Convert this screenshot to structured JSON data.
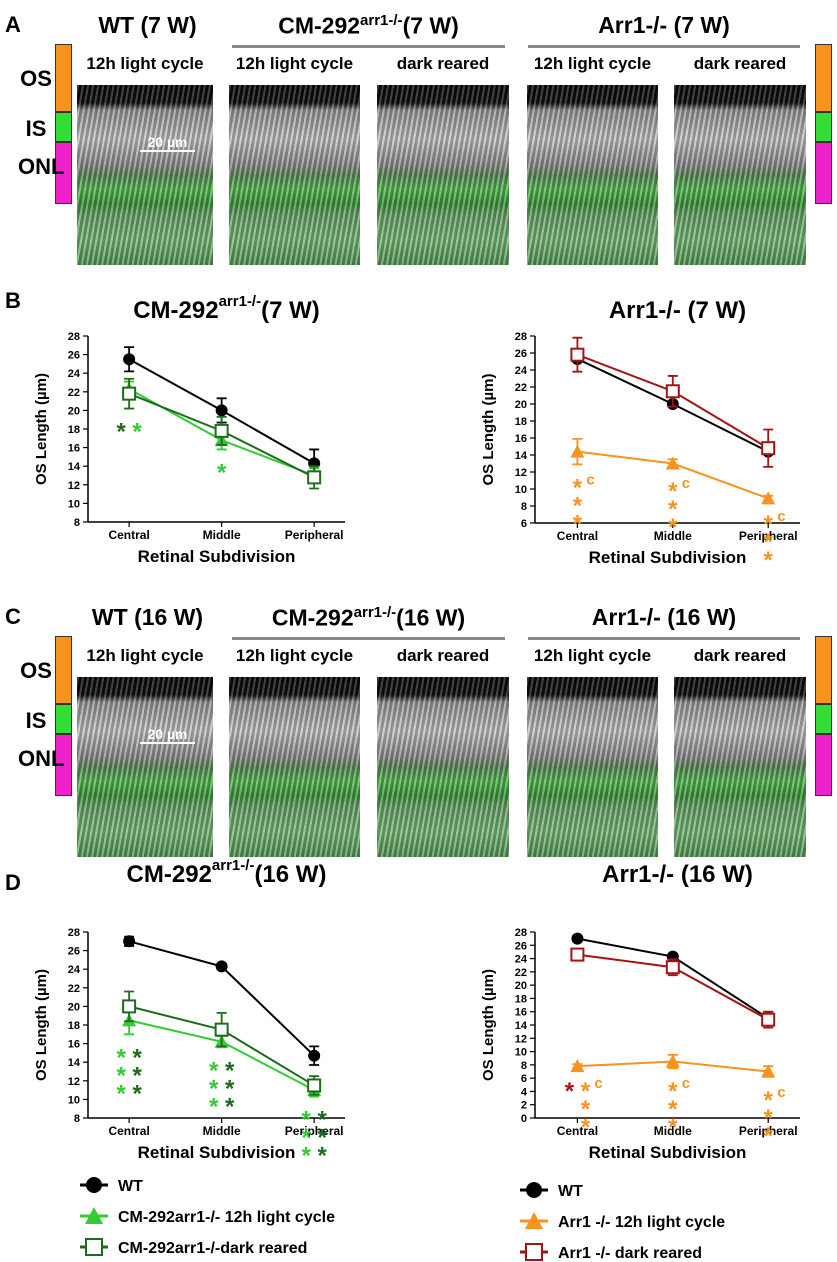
{
  "panel_A": {
    "letter": "A",
    "headings": [
      {
        "text": "WT (7 W)"
      },
      {
        "text": "CM-292",
        "sup": "arr1-/-",
        "suffix": "(7 W)"
      },
      {
        "text": "Arr1-/-  (7 W)"
      }
    ],
    "conditions": [
      "12h light cycle",
      "12h light cycle",
      "dark reared",
      "12h light cycle",
      "dark reared"
    ],
    "scale_bar": "20 µm",
    "layers": [
      "OS",
      "IS",
      "ONL"
    ]
  },
  "panel_B": {
    "letter": "B"
  },
  "panel_C": {
    "letter": "C",
    "headings": [
      {
        "text": "WT (16 W)"
      },
      {
        "text": "CM-292",
        "sup": "arr1-/-",
        "suffix": "(16 W)"
      },
      {
        "text": "Arr1-/-  (16 W)"
      }
    ],
    "conditions": [
      "12h light cycle",
      "12h light cycle",
      "dark reared",
      "12h light cycle",
      "dark reared"
    ],
    "scale_bar": "20 µm",
    "layers": [
      "OS",
      "IS",
      "ONL"
    ]
  },
  "panel_D": {
    "letter": "D"
  },
  "chart_data": [
    {
      "type": "line",
      "title": {
        "text": "CM-292",
        "sup": "arr1-/-",
        "suffix": "(7 W)"
      },
      "ylabel": "OS Length (µm)",
      "xlabel": "Retinal Subdivision",
      "categories": [
        "Central",
        "Middle",
        "Peripheral"
      ],
      "ylim": [
        8,
        28
      ],
      "yticks": [
        8,
        10,
        12,
        14,
        16,
        18,
        20,
        22,
        24,
        26,
        28
      ],
      "series": [
        {
          "color": "#000000",
          "marker": "circle",
          "values": [
            25.5,
            20,
            14.3
          ],
          "errors": [
            1.3,
            1.3,
            1.5
          ]
        },
        {
          "color": "#33cc33",
          "marker": "triangle",
          "values": [
            22.3,
            16.8,
            13
          ],
          "errors": [
            0.8,
            1.0,
            0.8
          ]
        },
        {
          "color": "#1e6b1e",
          "marker": "square-open",
          "values": [
            21.8,
            17.8,
            12.8
          ],
          "errors": [
            1.6,
            1.5,
            1.2
          ]
        }
      ],
      "annotations": [
        {
          "category": 0,
          "text": "*",
          "color": "#1e6b1e"
        },
        {
          "category": 0,
          "text": "*",
          "color": "#33cc33"
        },
        {
          "category": 1,
          "text": "*",
          "color": "#33cc33"
        }
      ]
    },
    {
      "type": "line",
      "title": "Arr1-/-  (7 W)",
      "ylabel": "OS Length (µm)",
      "xlabel": "Retinal Subdivision",
      "categories": [
        "Central",
        "Middle",
        "Peripheral"
      ],
      "ylim": [
        6,
        28
      ],
      "yticks": [
        6,
        8,
        10,
        12,
        14,
        16,
        18,
        20,
        22,
        24,
        26,
        28
      ],
      "series": [
        {
          "color": "#000000",
          "marker": "circle",
          "values": [
            25.3,
            20,
            14.4
          ],
          "errors": [
            0.3,
            0.3,
            0.3
          ]
        },
        {
          "color": "#f7931e",
          "marker": "triangle",
          "values": [
            14.4,
            13,
            8.9
          ],
          "errors": [
            1.5,
            0.5,
            0.3
          ]
        },
        {
          "color": "#a31515",
          "marker": "square-open",
          "values": [
            25.8,
            21.5,
            14.8
          ],
          "errors": [
            2,
            1.8,
            2.2
          ]
        }
      ],
      "annotations": [
        {
          "category": 0,
          "text": "***",
          "sup": "c",
          "color": "#f7931e"
        },
        {
          "category": 1,
          "text": "***",
          "sup": "c",
          "color": "#f7931e"
        },
        {
          "category": 2,
          "text": "***",
          "sup": "c",
          "color": "#f7931e"
        }
      ]
    },
    {
      "type": "line",
      "title": {
        "text": "CM-292",
        "sup": "arr1-/-",
        "suffix": "(16 W)"
      },
      "ylabel": "OS Length (µm)",
      "xlabel": "Retinal Subdivision",
      "categories": [
        "Central",
        "Middle",
        "Peripheral"
      ],
      "ylim": [
        8,
        28
      ],
      "yticks": [
        8,
        10,
        12,
        14,
        16,
        18,
        20,
        22,
        24,
        26,
        28
      ],
      "series": [
        {
          "name": "WT",
          "color": "#000000",
          "marker": "circle",
          "values": [
            27,
            24.3,
            14.7
          ],
          "errors": [
            0.5,
            0.2,
            1
          ]
        },
        {
          "name": "CM-292arr1-/- 12h light cycle",
          "color": "#33cc33",
          "marker": "triangle",
          "values": [
            18.5,
            16.2,
            11
          ],
          "errors": [
            1.5,
            0.6,
            0.7
          ]
        },
        {
          "name": "CM-292arr1-/-dark reared",
          "color": "#1e6b1e",
          "marker": "square-open",
          "values": [
            20,
            17.5,
            11.5
          ],
          "errors": [
            1.6,
            1.8,
            1
          ]
        }
      ],
      "annotations": [
        {
          "category": 0,
          "text": "***",
          "color": "#33cc33"
        },
        {
          "category": 0,
          "text": "***",
          "color": "#1e6b1e"
        },
        {
          "category": 1,
          "text": "***",
          "color": "#33cc33"
        },
        {
          "category": 1,
          "text": "***",
          "color": "#1e6b1e"
        },
        {
          "category": 2,
          "text": "***",
          "color": "#33cc33"
        },
        {
          "category": 2,
          "text": "***",
          "color": "#1e6b1e"
        }
      ]
    },
    {
      "type": "line",
      "title": "Arr1-/-  (16 W)",
      "ylabel": "OS Length (µm)",
      "xlabel": "Retinal Subdivision",
      "categories": [
        "Central",
        "Middle",
        "Peripheral"
      ],
      "ylim": [
        0,
        28
      ],
      "yticks": [
        0,
        2,
        4,
        6,
        8,
        10,
        12,
        14,
        16,
        18,
        20,
        22,
        24,
        26,
        28
      ],
      "series": [
        {
          "name": "WT",
          "color": "#000000",
          "marker": "circle",
          "values": [
            27,
            24.3,
            15
          ],
          "errors": [
            0.2,
            0.3,
            1
          ]
        },
        {
          "name": "Arr1 -/- 12h light cycle",
          "color": "#f7931e",
          "marker": "triangle",
          "values": [
            7.8,
            8.5,
            7
          ],
          "errors": [
            0.3,
            1,
            0.8
          ]
        },
        {
          "name": "Arr1 -/- dark reared",
          "color": "#a31515",
          "marker": "square-open",
          "values": [
            24.6,
            22.7,
            14.8
          ],
          "errors": [
            0.8,
            1.2,
            1.2
          ]
        }
      ],
      "annotations": [
        {
          "category": 0,
          "text": "*",
          "color": "#a31515"
        },
        {
          "category": 0,
          "text": "***",
          "sup": "c",
          "color": "#f7931e"
        },
        {
          "category": 1,
          "text": "***",
          "sup": "c",
          "color": "#f7931e"
        },
        {
          "category": 2,
          "text": "***",
          "sup": "c",
          "color": "#f7931e"
        }
      ]
    }
  ]
}
